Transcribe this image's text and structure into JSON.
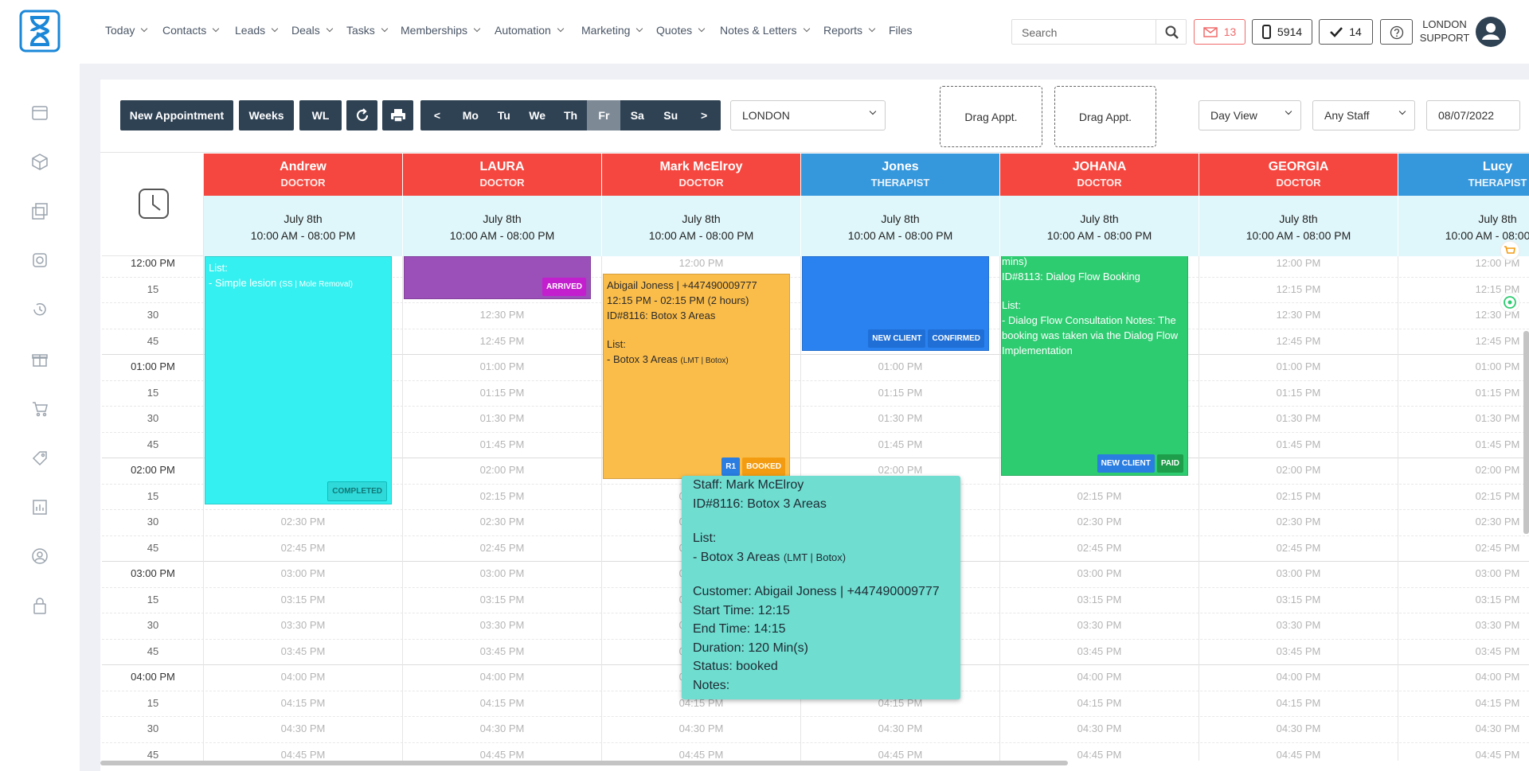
{
  "nav": {
    "items": [
      "Today",
      "Contacts",
      "Leads",
      "Deals",
      "Tasks",
      "Memberships",
      "Automation",
      "Marketing",
      "Quotes",
      "Notes & Letters",
      "Reports",
      "Files"
    ],
    "search": "Search",
    "mail_count": "13",
    "phone_count": "5914",
    "task_count": "14",
    "user": [
      "LONDON",
      "SUPPORT"
    ]
  },
  "toolbar": {
    "buttons": [
      "New Appointment",
      "Weeks",
      "WL"
    ],
    "days": [
      "<",
      "Mo",
      "Tu",
      "We",
      "Th",
      "Fr",
      "Sa",
      "Su",
      ">"
    ],
    "location": "LONDON",
    "drag": [
      "Drag Appt.",
      "Drag Appt."
    ],
    "view": "Day View",
    "staff_filter": "Any Staff",
    "date": "08/07/2022"
  },
  "calendar": {
    "staff": [
      {
        "name": "Andrew",
        "role": "DOCTOR",
        "color": "#f5473f",
        "date": "July 8th",
        "hours": "10:00 AM - 08:00 PM",
        "appointment": {
          "color": "#35f0f0",
          "text_color": "#ffffff",
          "blocks": [
            [
              "List:",
              {
                "text": "- Simple lesion",
                "note": "(SS | Mole Removal)"
              }
            ]
          ],
          "badges": [
            {
              "text": "COMPLETED",
              "color": "#2fd9d9"
            }
          ]
        }
      },
      {
        "name": "LAURA",
        "role": "DOCTOR",
        "color": "#f5473f",
        "date": "July 8th",
        "hours": "10:00 AM - 08:00 PM",
        "appointment": {
          "color": "#9b4fb8",
          "text_color": "#ffffff",
          "blocks": [],
          "badges": [
            {
              "text": "ARRIVED",
              "color": "#c41fcf"
            }
          ]
        }
      },
      {
        "name": "Mark McElroy",
        "role": "DOCTOR",
        "color": "#f5473f",
        "date": "July 8th",
        "hours": "10:00 AM - 08:00 PM",
        "appointment": {
          "color": "#fbbd4a",
          "text_color": "#2b2b2b",
          "blocks": [
            [
              "Abigail Joness | +447490009777",
              "12:15 PM - 02:15 PM (2 hours)",
              "ID#8116: Botox 3 Areas"
            ],
            [
              "List:",
              {
                "text": "- Botox 3 Areas",
                "note": "(LMT | Botox)"
              }
            ]
          ],
          "badges": [
            {
              "text": "R1",
              "color": "#2a7de1"
            },
            {
              "text": "BOOKED",
              "color": "#f39c12"
            }
          ]
        }
      },
      {
        "name": "Jones",
        "role": "THERAPIST",
        "color": "#3597dc",
        "date": "July 8th",
        "hours": "10:00 AM - 08:00 PM",
        "appointment": {
          "color": "#2a82f0",
          "text_color": "#ffffff",
          "blocks": [],
          "badges": [
            {
              "text": "NEW CLIENT",
              "color": "#1f6fd6"
            },
            {
              "text": "CONFIRMED",
              "color": "#1f6fd6"
            }
          ]
        }
      },
      {
        "name": "JOHANA",
        "role": "DOCTOR",
        "color": "#f5473f",
        "date": "July 8th",
        "hours": "10:00 AM - 08:00 PM",
        "appointment": {
          "color": "#2ecc71",
          "text_color": "#ffffff",
          "blocks": [
            [
              "mins)",
              "ID#8113: Dialog Flow Booking"
            ],
            [
              "List:",
              "- Dialog Flow Consultation Notes: The booking was taken via the Dialog Flow Implementation"
            ]
          ],
          "badges": [
            {
              "text": "NEW CLIENT",
              "color": "#2a7de1"
            },
            {
              "text": "PAID",
              "color": "#1e9e4a"
            }
          ]
        }
      },
      {
        "name": "GEORGIA",
        "role": "DOCTOR",
        "color": "#f5473f",
        "date": "July 8th",
        "hours": "10:00 AM - 08:00 PM"
      },
      {
        "name": "Lucy",
        "role": "THERAPIST",
        "color": "#3597dc",
        "date": "July 8th",
        "hours": "10:00 AM - 08:00 PM"
      }
    ],
    "time_axis": [
      "12:00 PM",
      "15",
      "30",
      "45",
      "01:00 PM",
      "15",
      "30",
      "45",
      "02:00 PM",
      "15",
      "30",
      "45",
      "03:00 PM",
      "15",
      "30",
      "45",
      "04:00 PM",
      "15",
      "30",
      "45"
    ],
    "slots": [
      "12:00 PM",
      "12:15 PM",
      "12:30 PM",
      "12:45 PM",
      "01:00 PM",
      "01:15 PM",
      "01:30 PM",
      "01:45 PM",
      "02:00 PM",
      "02:15 PM",
      "02:30 PM",
      "02:45 PM",
      "03:00 PM",
      "03:15 PM",
      "03:30 PM",
      "03:45 PM",
      "04:00 PM",
      "04:15 PM",
      "04:30 PM",
      "04:45 PM"
    ],
    "tooltip": {
      "blocks": [
        [
          "Staff: Mark McElroy",
          "ID#8116: Botox 3 Areas"
        ],
        [
          "List:",
          {
            "text": "- Botox 3 Areas",
            "note": "(LMT | Botox)"
          }
        ],
        [
          "Customer: Abigail Joness | +447490009777",
          "Start Time: 12:15",
          "End Time: 14:15",
          "Duration: 120 Min(s)",
          "Status: booked",
          "Notes:"
        ]
      ]
    }
  }
}
